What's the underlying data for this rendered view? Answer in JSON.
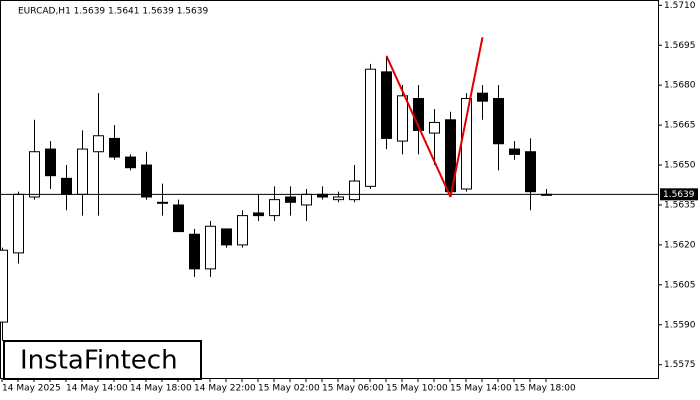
{
  "chart_data": {
    "type": "candlestick",
    "title": "EURCAD,H1  1.5639 1.5641 1.5639 1.5639",
    "categories": [
      "14 May 2025",
      null,
      null,
      null,
      "14 May 14:00",
      null,
      null,
      null,
      "14 May 18:00",
      null,
      null,
      null,
      "14 May 22:00",
      null,
      null,
      null,
      "15 May 02:00",
      null,
      null,
      null,
      "15 May 06:00",
      null,
      null,
      null,
      "15 May 10:00",
      null,
      null,
      null,
      "15 May 14:00",
      null,
      null,
      null,
      "15 May 18:00",
      null,
      null
    ],
    "open": [
      1.5591,
      1.5617,
      1.5638,
      1.5656,
      1.5645,
      1.5639,
      1.5655,
      1.566,
      1.5653,
      1.565,
      1.5636,
      1.5635,
      1.5624,
      1.5611,
      1.5626,
      1.562,
      1.5632,
      1.5631,
      1.5638,
      1.5635,
      1.5639,
      1.5637,
      1.5637,
      1.5642,
      1.5685,
      1.5659,
      1.5675,
      1.5662,
      1.5667,
      1.5641,
      1.5677,
      1.5675,
      1.5656,
      1.5655,
      1.5639
    ],
    "high": [
      1.5619,
      1.564,
      1.5667,
      1.5659,
      1.565,
      1.5663,
      1.5677,
      1.5665,
      1.5654,
      1.5655,
      1.5643,
      1.5637,
      1.5626,
      1.5629,
      1.5626,
      1.5633,
      1.5639,
      1.5642,
      1.5642,
      1.5641,
      1.5642,
      1.564,
      1.565,
      1.5688,
      1.5691,
      1.568,
      1.568,
      1.5671,
      1.567,
      1.5677,
      1.568,
      1.568,
      1.5659,
      1.566,
      1.5641
    ],
    "low": [
      1.5584,
      1.5613,
      1.5637,
      1.5641,
      1.5633,
      1.5631,
      1.5631,
      1.5652,
      1.5648,
      1.5637,
      1.5631,
      1.5625,
      1.5608,
      1.5608,
      1.5619,
      1.5619,
      1.5629,
      1.5629,
      1.5631,
      1.5629,
      1.5637,
      1.5636,
      1.5636,
      1.5641,
      1.5656,
      1.5654,
      1.5654,
      1.565,
      1.5639,
      1.564,
      1.5667,
      1.5648,
      1.5652,
      1.5633,
      1.5639
    ],
    "close": [
      1.5618,
      1.5639,
      1.5655,
      1.5646,
      1.5639,
      1.5656,
      1.5661,
      1.5653,
      1.5649,
      1.5638,
      1.5636,
      1.5625,
      1.5611,
      1.5627,
      1.562,
      1.5631,
      1.5631,
      1.5637,
      1.5636,
      1.5639,
      1.5638,
      1.5638,
      1.5644,
      1.5686,
      1.566,
      1.5676,
      1.5663,
      1.5666,
      1.564,
      1.5675,
      1.5674,
      1.5658,
      1.5654,
      1.564,
      1.5639
    ],
    "up_color": "#ffffff",
    "down_color": "#000000",
    "ylim": [
      1.557,
      1.5712
    ],
    "yticks": [
      1.5575,
      {
        "value": 1.559,
        "label": "1.5590"
      },
      1.5605,
      {
        "value": 1.562,
        "label": "1.5620"
      },
      1.5635,
      {
        "value": 1.565,
        "label": "1.5650"
      },
      1.5665,
      {
        "value": 1.568,
        "label": "1.5680"
      },
      1.5695,
      {
        "value": 1.571,
        "label": "1.5710"
      }
    ],
    "last_price": 1.5639,
    "pattern": {
      "color": "#e00000",
      "points": [
        {
          "bar": 24,
          "value": 1.5691
        },
        {
          "bar": 28,
          "value": 1.5638
        },
        {
          "bar": 30,
          "value": 1.5698
        }
      ]
    },
    "watermark": "InstaFintech"
  }
}
